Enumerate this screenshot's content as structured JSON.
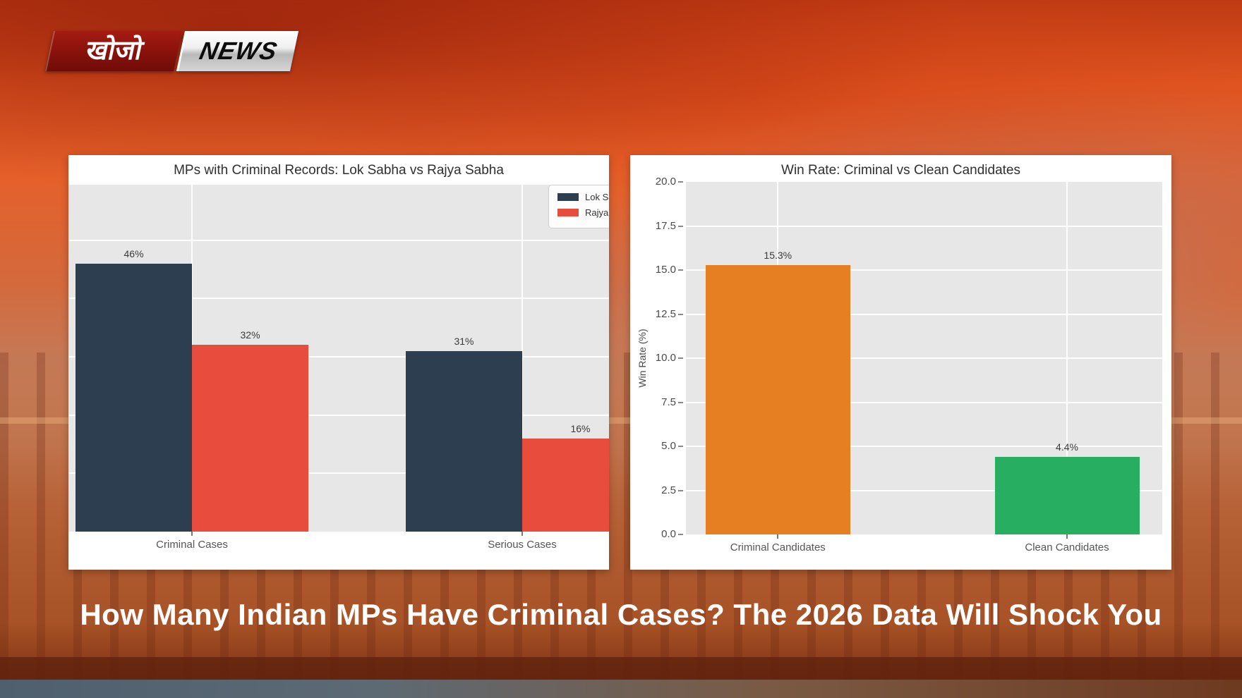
{
  "logo": {
    "brand_hindi": "खोजो",
    "brand_en": "NEWS"
  },
  "headline": "How Many Indian MPs Have Criminal Cases? The 2026 Data Will Shock You",
  "colors": {
    "lok_sabha": "#2c3e50",
    "rajya_sabha": "#e74c3c",
    "criminal_candidates": "#e67e22",
    "clean_candidates": "#27ae60",
    "plot_background": "#e8e7e7",
    "card_background": "#ffffff",
    "headline_text": "#ffffff"
  },
  "chart_data": [
    {
      "type": "bar",
      "title": "MPs with Criminal Records: Lok Sabha vs Rajya Sabha",
      "categories": [
        "Criminal Cases",
        "Serious Cases"
      ],
      "series": [
        {
          "name": "Lok Sabha",
          "color": "#2c3e50",
          "values": [
            46,
            31
          ],
          "value_labels": [
            "46%",
            "31%"
          ]
        },
        {
          "name": "Rajya Sabha",
          "color": "#e74c3c",
          "values": [
            32,
            16
          ],
          "value_labels": [
            "32%",
            "16%"
          ]
        }
      ],
      "ylim": [
        0,
        59.5
      ],
      "grid": true,
      "gridline_step": 10,
      "legend": {
        "position": "upper-right",
        "entries": [
          "Lok Sabha",
          "Rajya Sabha"
        ]
      }
    },
    {
      "type": "bar",
      "title": "Win Rate: Criminal vs Clean Candidates",
      "categories": [
        "Criminal Candidates",
        "Clean Candidates"
      ],
      "series": [
        {
          "name": "Win Rate",
          "values": [
            15.3,
            4.4
          ],
          "value_labels": [
            "15.3%",
            "4.4%"
          ],
          "colors": [
            "#e67e22",
            "#27ae60"
          ]
        }
      ],
      "ylabel": "Win Rate (%)",
      "ylim": [
        0,
        20
      ],
      "yticks": [
        "20.0",
        "17.5",
        "15.0",
        "12.5",
        "10.0",
        "7.5",
        "5.0",
        "2.5",
        "0.0"
      ],
      "grid": true,
      "legend_position": "none"
    }
  ]
}
